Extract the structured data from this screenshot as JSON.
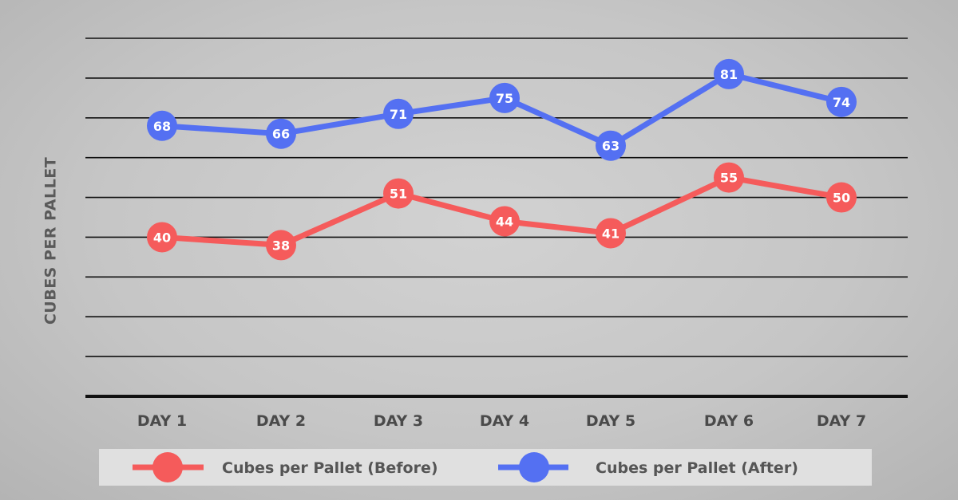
{
  "chart_data": {
    "type": "line",
    "ylabel": "CUBES PER PALLET",
    "categories": [
      "DAY 1",
      "DAY 2",
      "DAY 3",
      "DAY 4",
      "DAY 5",
      "DAY 6",
      "DAY 7"
    ],
    "ylim": [
      0,
      90
    ],
    "grid": true,
    "legend": "bottom",
    "series": [
      {
        "name": "Cubes per Pallet (Before)",
        "color": "#f55b5b",
        "values": [
          40,
          38,
          51,
          44,
          41,
          55,
          50
        ]
      },
      {
        "name": "Cubes per Pallet (After)",
        "color": "#5470f2",
        "values": [
          68,
          66,
          71,
          75,
          63,
          81,
          74
        ]
      }
    ]
  }
}
